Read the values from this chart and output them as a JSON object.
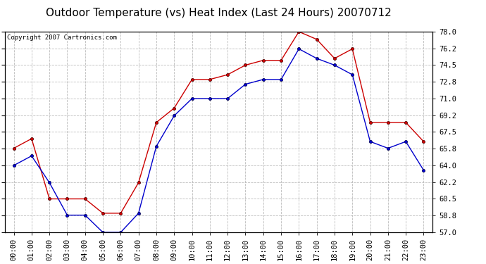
{
  "title": "Outdoor Temperature (vs) Heat Index (Last 24 Hours) 20070712",
  "copyright": "Copyright 2007 Cartronics.com",
  "hours": [
    "00:00",
    "01:00",
    "02:00",
    "03:00",
    "04:00",
    "05:00",
    "06:00",
    "07:00",
    "08:00",
    "09:00",
    "10:00",
    "11:00",
    "12:00",
    "13:00",
    "14:00",
    "15:00",
    "16:00",
    "17:00",
    "18:00",
    "19:00",
    "20:00",
    "21:00",
    "22:00",
    "23:00"
  ],
  "red_values": [
    65.8,
    66.8,
    60.5,
    60.5,
    60.5,
    59.0,
    59.0,
    62.2,
    68.5,
    70.0,
    73.0,
    73.0,
    73.5,
    74.5,
    75.0,
    75.0,
    78.0,
    77.2,
    75.2,
    76.2,
    68.5,
    68.5,
    68.5,
    66.5
  ],
  "blue_values": [
    64.0,
    65.0,
    62.2,
    58.8,
    58.8,
    57.0,
    57.0,
    59.0,
    66.0,
    69.2,
    71.0,
    71.0,
    71.0,
    72.5,
    73.0,
    73.0,
    76.2,
    75.2,
    74.5,
    73.5,
    66.5,
    65.8,
    66.5,
    63.5
  ],
  "ylim": [
    57.0,
    78.0
  ],
  "yticks": [
    57.0,
    58.8,
    60.5,
    62.2,
    64.0,
    65.8,
    67.5,
    69.2,
    71.0,
    72.8,
    74.5,
    76.2,
    78.0
  ],
  "red_color": "#cc0000",
  "blue_color": "#0000cc",
  "bg_color": "#ffffff",
  "grid_color": "#bbbbbb",
  "title_fontsize": 11,
  "copyright_fontsize": 6.5,
  "tick_fontsize": 7.5
}
